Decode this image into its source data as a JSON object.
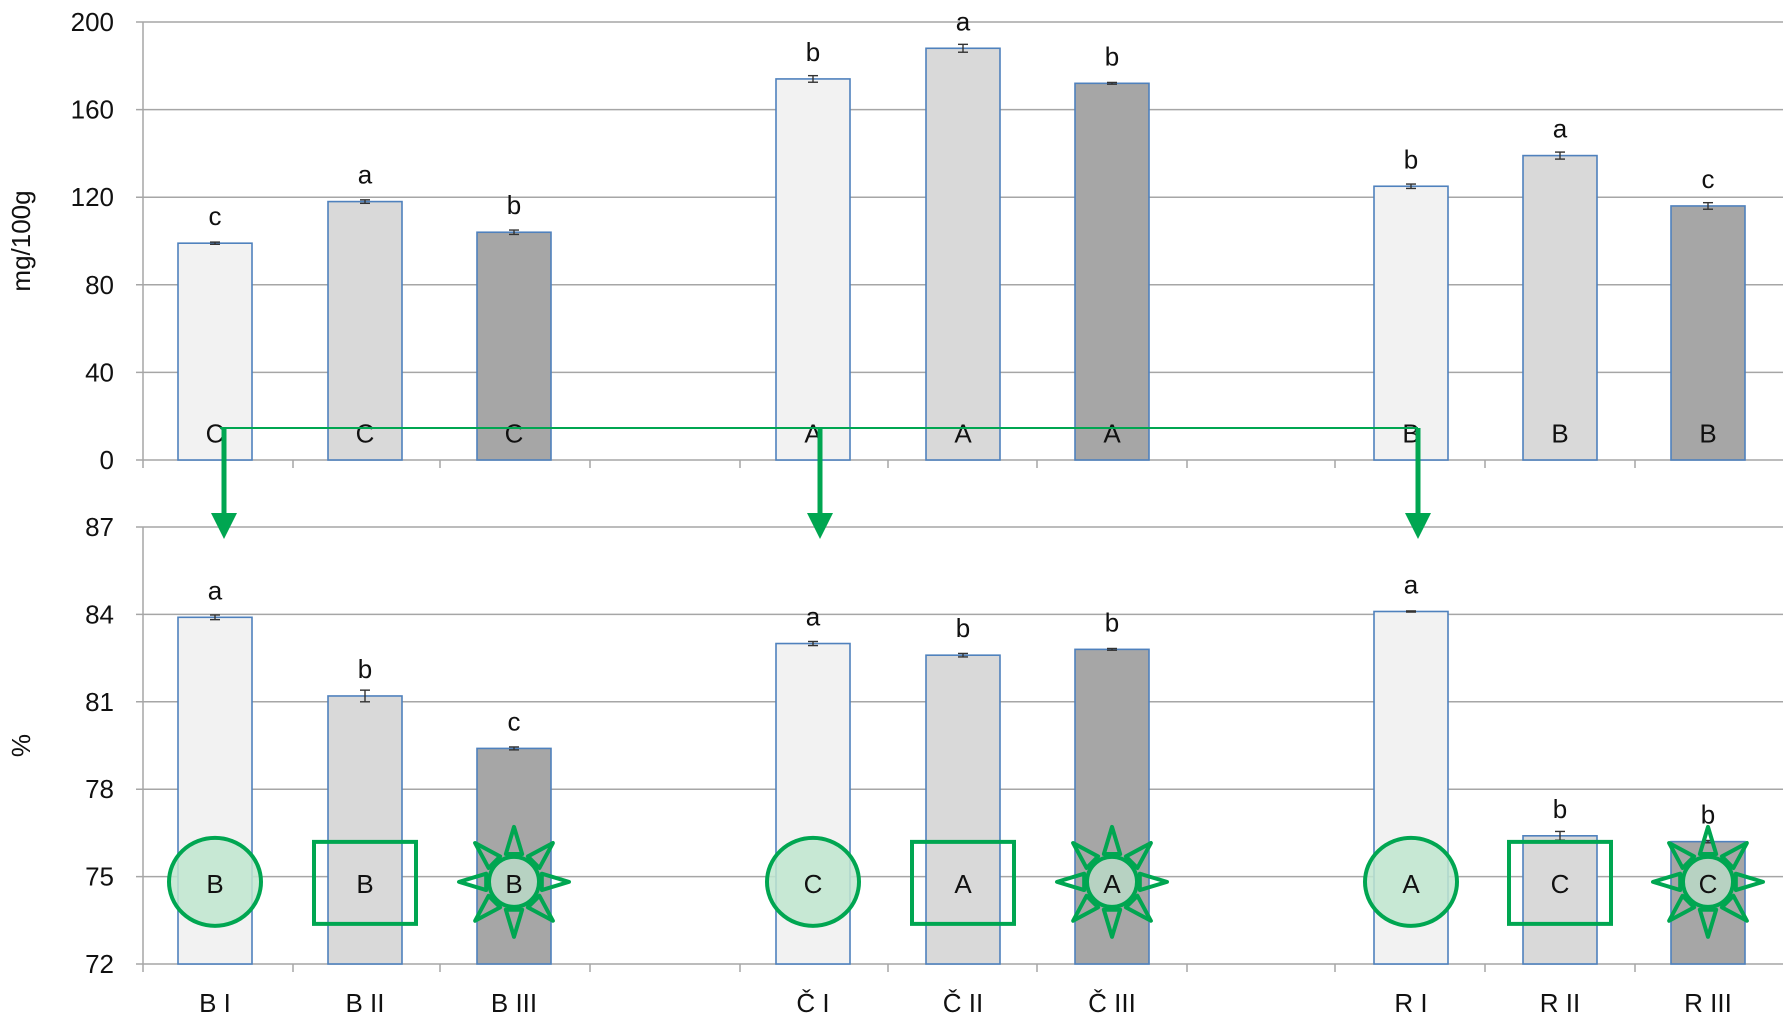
{
  "colors": {
    "bar_I": "#f2f2f2",
    "bar_II": "#d9d9d9",
    "bar_III": "#a6a6a6",
    "bar_edge": "#4f81bd",
    "grid": "#a6a6a6",
    "marker": "#00a651",
    "marker_fill": "#bfe6cf"
  },
  "chart_data": [
    {
      "type": "bar",
      "ylabel": "mg/100g",
      "ylim": [
        0,
        200
      ],
      "yticks": [
        0,
        40,
        80,
        120,
        160,
        200
      ],
      "grid": true,
      "categories": [
        "B I",
        "B II",
        "B III",
        "Č I",
        "Č II",
        "Č III",
        "R I",
        "R II",
        "R III"
      ],
      "values": [
        99,
        118,
        104,
        174,
        188,
        172,
        125,
        139,
        116
      ],
      "errors": [
        0.5,
        0.8,
        1.0,
        1.5,
        1.8,
        0.4,
        1.0,
        1.6,
        1.5
      ],
      "lowercase_letters": [
        "c",
        "a",
        "b",
        "b",
        "a",
        "b",
        "b",
        "a",
        "c"
      ],
      "uppercase_letters": [
        "C",
        "C",
        "C",
        "A",
        "A",
        "A",
        "B",
        "B",
        "B"
      ]
    },
    {
      "type": "bar",
      "ylabel": "%",
      "ylim": [
        72,
        87
      ],
      "yticks": [
        72,
        75,
        78,
        81,
        84,
        87
      ],
      "grid": true,
      "categories": [
        "B I",
        "B II",
        "B III",
        "Č I",
        "Č II",
        "Č III",
        "R I",
        "R II",
        "R III"
      ],
      "values": [
        83.9,
        81.2,
        79.4,
        83.0,
        82.6,
        82.8,
        84.1,
        76.4,
        76.2
      ],
      "errors": [
        0.08,
        0.2,
        0.05,
        0.07,
        0.06,
        0.03,
        0.02,
        0.15,
        0.04
      ],
      "lowercase_letters": [
        "a",
        "b",
        "c",
        "a",
        "b",
        "b",
        "a",
        "b",
        "b"
      ],
      "uppercase_letters": [
        "B",
        "B",
        "B",
        "C",
        "A",
        "A",
        "A",
        "C",
        "C"
      ],
      "letter_markers": [
        "circle",
        "square",
        "star",
        "circle",
        "square",
        "star",
        "circle",
        "square",
        "star"
      ]
    }
  ]
}
